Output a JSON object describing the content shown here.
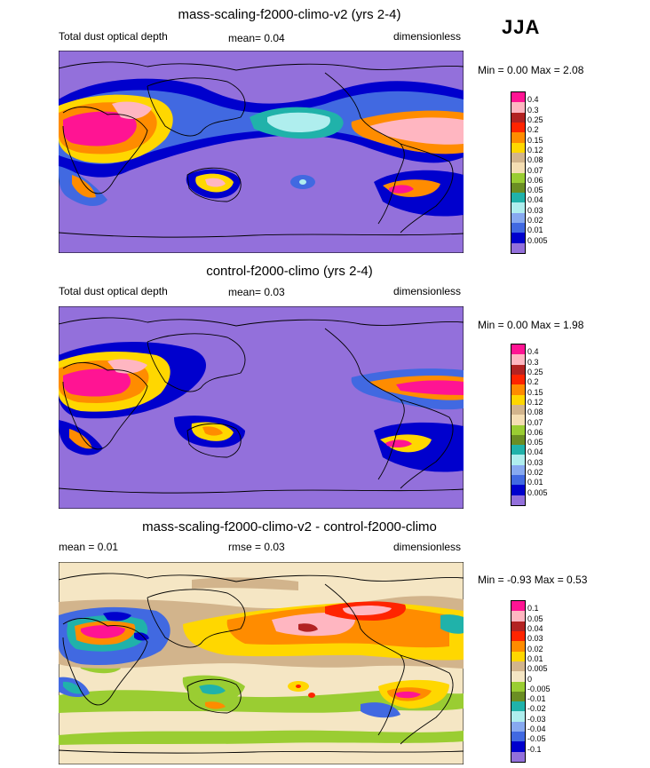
{
  "season": "JJA",
  "panels": [
    {
      "title": "mass-scaling-f2000-climo-v2 (yrs 2-4)",
      "left_label": "Total dust optical depth",
      "mid_label": "mean=   0.04",
      "right_label": "dimensionless",
      "minmax": "Min =   0.00 Max =   2.08",
      "levels": [
        "0.4",
        "0.3",
        "0.25",
        "0.2",
        "0.15",
        "0.12",
        "0.08",
        "0.07",
        "0.06",
        "0.05",
        "0.04",
        "0.03",
        "0.02",
        "0.01",
        "0.005"
      ],
      "colors": [
        "#ff1493",
        "#ffb6c1",
        "#b22222",
        "#ff2400",
        "#ff8c00",
        "#ffd700",
        "#d2b48c",
        "#f5deb3",
        "#9acd32",
        "#6b8e23",
        "#20b2aa",
        "#afeeee",
        "#87a9f0",
        "#4169e1",
        "#0000cd",
        "#9370db"
      ]
    },
    {
      "title": "control-f2000-climo (yrs 2-4)",
      "left_label": "Total dust optical depth",
      "mid_label": "mean=   0.03",
      "right_label": "dimensionless",
      "minmax": "Min =   0.00 Max =   1.98",
      "levels": [
        "0.4",
        "0.3",
        "0.25",
        "0.2",
        "0.15",
        "0.12",
        "0.08",
        "0.07",
        "0.06",
        "0.05",
        "0.04",
        "0.03",
        "0.02",
        "0.01",
        "0.005"
      ],
      "colors": [
        "#ff1493",
        "#ffb6c1",
        "#b22222",
        "#ff2400",
        "#ff8c00",
        "#ffd700",
        "#d2b48c",
        "#f5deb3",
        "#9acd32",
        "#6b8e23",
        "#20b2aa",
        "#afeeee",
        "#87a9f0",
        "#4169e1",
        "#0000cd",
        "#9370db"
      ]
    },
    {
      "title": "mass-scaling-f2000-climo-v2 - control-f2000-climo",
      "left_label": "mean =    0.01",
      "mid_label": "rmse =   0.03",
      "right_label": "dimensionless",
      "minmax": "Min =  -0.93 Max =   0.53",
      "levels": [
        "0.1",
        "0.05",
        "0.04",
        "0.03",
        "0.02",
        "0.01",
        "0.005",
        "0",
        "-0.005",
        "-0.01",
        "-0.02",
        "-0.03",
        "-0.04",
        "-0.05",
        "-0.1"
      ],
      "colors": [
        "#ff1493",
        "#ffb6c1",
        "#b22222",
        "#ff2400",
        "#ff8c00",
        "#ffd700",
        "#d2b48c",
        "#f5e6c4",
        "#9acd32",
        "#6b8e23",
        "#20b2aa",
        "#afeeee",
        "#87a9f0",
        "#4169e1",
        "#0000cd",
        "#9370db"
      ]
    }
  ]
}
